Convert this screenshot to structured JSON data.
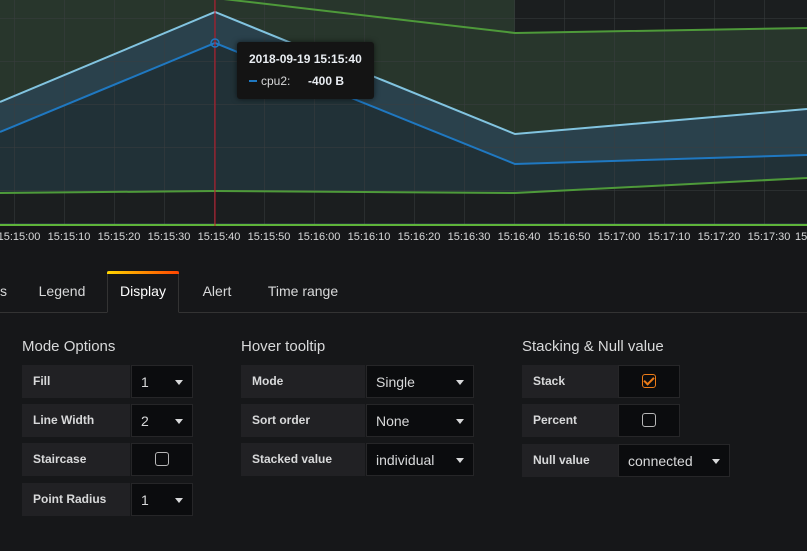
{
  "tooltip": {
    "time": "2018-09-19 15:15:40",
    "series_name": "cpu2:",
    "series_value": "-400 B",
    "series_color": "#1f78c1"
  },
  "x_ticks": [
    "15:15:00",
    "15:15:10",
    "15:15:20",
    "15:15:30",
    "15:15:40",
    "15:15:50",
    "15:16:00",
    "15:16:10",
    "15:16:20",
    "15:16:30",
    "15:16:40",
    "15:16:50",
    "15:17:00",
    "15:17:10",
    "15:17:20",
    "15:17:30",
    "15:"
  ],
  "chart_data": {
    "type": "line",
    "stacked": true,
    "grid": true,
    "fill": 1,
    "line_width": 2,
    "series_colors": [
      "#1f78c1",
      "#82c4e0",
      "#4e9a3a"
    ]
  },
  "tabs": [
    {
      "label": "s",
      "active": false
    },
    {
      "label": "Legend",
      "active": false
    },
    {
      "label": "Display",
      "active": true
    },
    {
      "label": "Alert",
      "active": false
    },
    {
      "label": "Time range",
      "active": false
    }
  ],
  "mode_options": {
    "title": "Mode Options",
    "fill_label": "Fill",
    "fill_value": "1",
    "line_width_label": "Line Width",
    "line_width_value": "2",
    "staircase_label": "Staircase",
    "staircase_checked": false,
    "point_radius_label": "Point Radius",
    "point_radius_value": "1"
  },
  "hover_tooltip": {
    "title": "Hover tooltip",
    "mode_label": "Mode",
    "mode_value": "Single",
    "sort_label": "Sort order",
    "sort_value": "None",
    "stacked_label": "Stacked value",
    "stacked_value": "individual"
  },
  "stacking": {
    "title": "Stacking & Null value",
    "stack_label": "Stack",
    "stack_checked": true,
    "percent_label": "Percent",
    "percent_checked": false,
    "null_label": "Null value",
    "null_value": "connected"
  }
}
